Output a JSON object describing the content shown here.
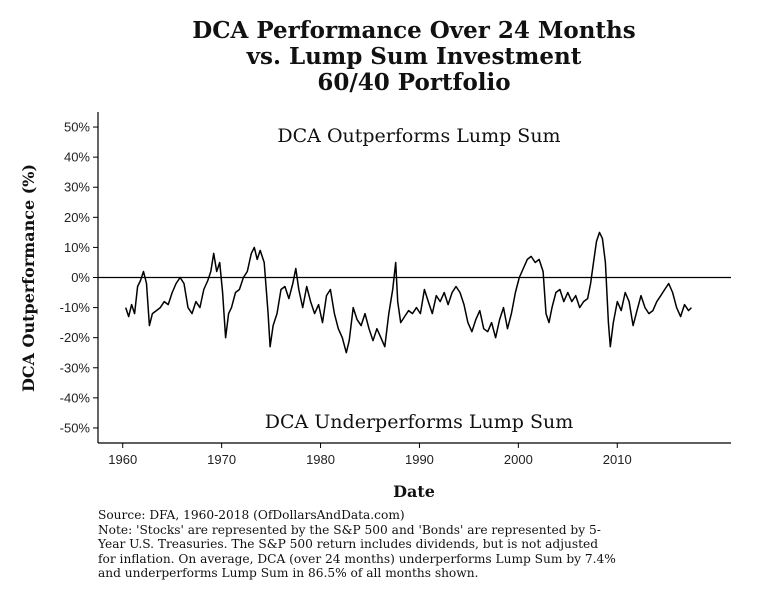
{
  "chart_data": {
    "type": "line",
    "title_lines": [
      "DCA Performance Over 24 Months",
      "vs. Lump Sum Investment",
      "60/40 Portfolio"
    ],
    "xlabel": "Date",
    "ylabel": "DCA Outperformance (%)",
    "xlim": [
      1957.5,
      2021.5
    ],
    "ylim": [
      -55,
      55
    ],
    "x_ticks": [
      {
        "value": 1960,
        "label": "1960"
      },
      {
        "value": 1970,
        "label": "1970"
      },
      {
        "value": 1980,
        "label": "1980"
      },
      {
        "value": 1990,
        "label": "1990"
      },
      {
        "value": 2000,
        "label": "2000"
      },
      {
        "value": 2010,
        "label": "2010"
      }
    ],
    "y_ticks": [
      {
        "value": 50,
        "label": "50%"
      },
      {
        "value": 40,
        "label": "40%"
      },
      {
        "value": 30,
        "label": "30%"
      },
      {
        "value": 20,
        "label": "20%"
      },
      {
        "value": 10,
        "label": "10%"
      },
      {
        "value": 0,
        "label": "0%"
      },
      {
        "value": -10,
        "label": "-10%"
      },
      {
        "value": -20,
        "label": "-20%"
      },
      {
        "value": -30,
        "label": "-30%"
      },
      {
        "value": -40,
        "label": "-40%"
      },
      {
        "value": -50,
        "label": "-50%"
      }
    ],
    "reference_line": 0,
    "annotations": {
      "above": "DCA Outperforms Lump Sum",
      "below": "DCA Underperforms Lump Sum"
    },
    "series": [
      {
        "name": "DCA Outperformance",
        "points": [
          [
            1960.3,
            -10
          ],
          [
            1960.6,
            -13
          ],
          [
            1960.9,
            -9
          ],
          [
            1961.2,
            -12
          ],
          [
            1961.5,
            -3
          ],
          [
            1961.8,
            -1
          ],
          [
            1962.1,
            2
          ],
          [
            1962.4,
            -2
          ],
          [
            1962.7,
            -16
          ],
          [
            1963.0,
            -12
          ],
          [
            1963.4,
            -11
          ],
          [
            1963.8,
            -10
          ],
          [
            1964.2,
            -8
          ],
          [
            1964.6,
            -9
          ],
          [
            1965.0,
            -5
          ],
          [
            1965.4,
            -2
          ],
          [
            1965.8,
            0
          ],
          [
            1966.2,
            -2
          ],
          [
            1966.6,
            -10
          ],
          [
            1967.0,
            -12
          ],
          [
            1967.4,
            -8
          ],
          [
            1967.8,
            -10
          ],
          [
            1968.2,
            -4
          ],
          [
            1968.6,
            -1
          ],
          [
            1968.9,
            2
          ],
          [
            1969.2,
            8
          ],
          [
            1969.5,
            2
          ],
          [
            1969.8,
            5
          ],
          [
            1970.1,
            -5
          ],
          [
            1970.4,
            -20
          ],
          [
            1970.7,
            -12
          ],
          [
            1971.0,
            -10
          ],
          [
            1971.4,
            -5
          ],
          [
            1971.8,
            -4
          ],
          [
            1972.2,
            0
          ],
          [
            1972.6,
            2
          ],
          [
            1973.0,
            8
          ],
          [
            1973.3,
            10
          ],
          [
            1973.6,
            6
          ],
          [
            1973.9,
            9
          ],
          [
            1974.3,
            5
          ],
          [
            1974.7,
            -12
          ],
          [
            1974.9,
            -23
          ],
          [
            1975.2,
            -16
          ],
          [
            1975.6,
            -12
          ],
          [
            1976.0,
            -4
          ],
          [
            1976.4,
            -3
          ],
          [
            1976.8,
            -7
          ],
          [
            1977.2,
            -2
          ],
          [
            1977.5,
            3
          ],
          [
            1977.8,
            -4
          ],
          [
            1978.2,
            -10
          ],
          [
            1978.6,
            -3
          ],
          [
            1979.0,
            -8
          ],
          [
            1979.4,
            -12
          ],
          [
            1979.8,
            -9
          ],
          [
            1980.2,
            -15
          ],
          [
            1980.6,
            -6
          ],
          [
            1981.0,
            -4
          ],
          [
            1981.4,
            -12
          ],
          [
            1981.8,
            -17
          ],
          [
            1982.2,
            -20
          ],
          [
            1982.6,
            -25
          ],
          [
            1982.9,
            -21
          ],
          [
            1983.3,
            -10
          ],
          [
            1983.7,
            -14
          ],
          [
            1984.1,
            -16
          ],
          [
            1984.5,
            -12
          ],
          [
            1984.9,
            -17
          ],
          [
            1985.3,
            -21
          ],
          [
            1985.7,
            -17
          ],
          [
            1986.1,
            -20
          ],
          [
            1986.5,
            -23
          ],
          [
            1986.9,
            -12
          ],
          [
            1987.3,
            -4
          ],
          [
            1987.6,
            5
          ],
          [
            1987.8,
            -8
          ],
          [
            1988.1,
            -15
          ],
          [
            1988.5,
            -13
          ],
          [
            1988.9,
            -11
          ],
          [
            1989.3,
            -12
          ],
          [
            1989.7,
            -10
          ],
          [
            1990.1,
            -12
          ],
          [
            1990.5,
            -4
          ],
          [
            1990.9,
            -8
          ],
          [
            1991.3,
            -12
          ],
          [
            1991.7,
            -6
          ],
          [
            1992.1,
            -8
          ],
          [
            1992.5,
            -5
          ],
          [
            1992.9,
            -9
          ],
          [
            1993.3,
            -5
          ],
          [
            1993.7,
            -3
          ],
          [
            1994.1,
            -5
          ],
          [
            1994.5,
            -9
          ],
          [
            1994.9,
            -15
          ],
          [
            1995.3,
            -18
          ],
          [
            1995.7,
            -14
          ],
          [
            1996.1,
            -11
          ],
          [
            1996.5,
            -17
          ],
          [
            1996.9,
            -18
          ],
          [
            1997.3,
            -15
          ],
          [
            1997.7,
            -20
          ],
          [
            1998.1,
            -14
          ],
          [
            1998.5,
            -10
          ],
          [
            1998.9,
            -17
          ],
          [
            1999.3,
            -12
          ],
          [
            1999.7,
            -5
          ],
          [
            2000.1,
            0
          ],
          [
            2000.5,
            3
          ],
          [
            2000.9,
            6
          ],
          [
            2001.3,
            7
          ],
          [
            2001.7,
            5
          ],
          [
            2002.1,
            6
          ],
          [
            2002.5,
            2
          ],
          [
            2002.8,
            -12
          ],
          [
            2003.1,
            -15
          ],
          [
            2003.4,
            -10
          ],
          [
            2003.8,
            -5
          ],
          [
            2004.2,
            -4
          ],
          [
            2004.6,
            -8
          ],
          [
            2005.0,
            -5
          ],
          [
            2005.4,
            -8
          ],
          [
            2005.8,
            -6
          ],
          [
            2006.2,
            -10
          ],
          [
            2006.6,
            -8
          ],
          [
            2007.0,
            -7
          ],
          [
            2007.3,
            -2
          ],
          [
            2007.6,
            5
          ],
          [
            2007.9,
            12
          ],
          [
            2008.2,
            15
          ],
          [
            2008.5,
            13
          ],
          [
            2008.8,
            5
          ],
          [
            2009.1,
            -15
          ],
          [
            2009.3,
            -23
          ],
          [
            2009.6,
            -15
          ],
          [
            2010.0,
            -8
          ],
          [
            2010.4,
            -11
          ],
          [
            2010.8,
            -5
          ],
          [
            2011.2,
            -8
          ],
          [
            2011.6,
            -16
          ],
          [
            2012.0,
            -11
          ],
          [
            2012.4,
            -6
          ],
          [
            2012.8,
            -10
          ],
          [
            2013.2,
            -12
          ],
          [
            2013.6,
            -11
          ],
          [
            2014.0,
            -8
          ],
          [
            2014.4,
            -6
          ],
          [
            2014.8,
            -4
          ],
          [
            2015.2,
            -2
          ],
          [
            2015.6,
            -5
          ],
          [
            2016.0,
            -10
          ],
          [
            2016.4,
            -13
          ],
          [
            2016.8,
            -9
          ],
          [
            2017.2,
            -11
          ],
          [
            2017.5,
            -10
          ]
        ]
      }
    ]
  },
  "source_note": {
    "lines": [
      "Source:  DFA, 1960-2018 (OfDollarsAndData.com)",
      "Note: 'Stocks' are represented by the S&P 500 and 'Bonds' are represented by 5-",
      "Year U.S. Treasuries. The S&P 500 return includes dividends, but is not adjusted",
      "for inflation. On average, DCA (over 24 months) underperforms Lump Sum by 7.4%",
      "and underperforms Lump Sum in 86.5% of all months shown."
    ]
  }
}
